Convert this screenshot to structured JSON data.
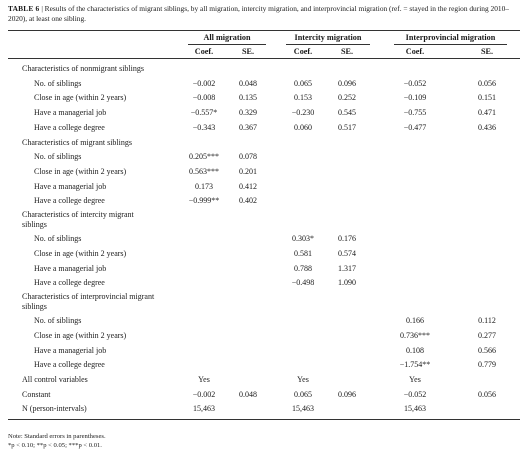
{
  "caption": {
    "label": "TABLE 6",
    "separator": "|",
    "text": "Results of the characteristics of migrant siblings, by all migration, intercity migration, and interprovincial migration (ref. = stayed in the region during 2010–2020), at least one sibling."
  },
  "header": {
    "groups": [
      "All migration",
      "Intercity migration",
      "Interprovincial migration"
    ],
    "sub": [
      "Coef.",
      "SE.",
      "Coef.",
      "SE.",
      "Coef.",
      "SE."
    ]
  },
  "rows": [
    {
      "type": "section",
      "label": "Characteristics of nonmigrant siblings"
    },
    {
      "type": "data",
      "label": "No. of siblings",
      "v": [
        "−0.002",
        "0.048",
        "0.065",
        "0.096",
        "−0.052",
        "0.056"
      ]
    },
    {
      "type": "data",
      "label": "Close in age (within 2 years)",
      "v": [
        "−0.008",
        "0.135",
        "0.153",
        "0.252",
        "−0.109",
        "0.151"
      ]
    },
    {
      "type": "data",
      "label": "Have a managerial job",
      "v": [
        "−0.557*",
        "0.329",
        "−0.230",
        "0.545",
        "−0.755",
        "0.471"
      ]
    },
    {
      "type": "data",
      "label": "Have a college degree",
      "v": [
        "−0.343",
        "0.367",
        "0.060",
        "0.517",
        "−0.477",
        "0.436"
      ]
    },
    {
      "type": "section",
      "label": "Characteristics of migrant siblings"
    },
    {
      "type": "data",
      "label": "No. of siblings",
      "v": [
        "0.205***",
        "0.078",
        "",
        "",
        "",
        ""
      ]
    },
    {
      "type": "data",
      "label": "Close in age (within 2 years)",
      "v": [
        "0.563***",
        "0.201",
        "",
        "",
        "",
        ""
      ]
    },
    {
      "type": "data",
      "label": "Have a managerial job",
      "v": [
        "0.173",
        "0.412",
        "",
        "",
        "",
        ""
      ]
    },
    {
      "type": "data",
      "label": "Have a college degree",
      "v": [
        "−0.999**",
        "0.402",
        "",
        "",
        "",
        ""
      ]
    },
    {
      "type": "section2",
      "label": "Characteristics of intercity migrant",
      "label2": "siblings"
    },
    {
      "type": "data",
      "label": "No. of siblings",
      "v": [
        "",
        "",
        "0.303*",
        "0.176",
        "",
        ""
      ]
    },
    {
      "type": "data",
      "label": "Close in age (within 2 years)",
      "v": [
        "",
        "",
        "0.581",
        "0.574",
        "",
        ""
      ]
    },
    {
      "type": "data",
      "label": "Have a managerial job",
      "v": [
        "",
        "",
        "0.788",
        "1.317",
        "",
        ""
      ]
    },
    {
      "type": "data",
      "label": "Have a college degree",
      "v": [
        "",
        "",
        "−0.498",
        "1.090",
        "",
        ""
      ]
    },
    {
      "type": "section2",
      "label": "Characteristics of interprovincial migrant",
      "label2": "siblings"
    },
    {
      "type": "data",
      "label": "No. of siblings",
      "v": [
        "",
        "",
        "",
        "",
        "0.166",
        "0.112"
      ]
    },
    {
      "type": "data",
      "label": "Close in age (within 2 years)",
      "v": [
        "",
        "",
        "",
        "",
        "0.736***",
        "0.277"
      ]
    },
    {
      "type": "data",
      "label": "Have a managerial job",
      "v": [
        "",
        "",
        "",
        "",
        "0.108",
        "0.566"
      ]
    },
    {
      "type": "data",
      "label": "Have a college degree",
      "v": [
        "",
        "",
        "",
        "",
        "−1.754**",
        "0.779"
      ]
    },
    {
      "type": "summary",
      "label": "All control variables",
      "v": [
        "Yes",
        "",
        "Yes",
        "",
        "Yes",
        ""
      ]
    },
    {
      "type": "summary",
      "label": "Constant",
      "v": [
        "−0.002",
        "0.048",
        "0.065",
        "0.096",
        "−0.052",
        "0.056"
      ]
    },
    {
      "type": "summary",
      "label": "N (person-intervals)",
      "v": [
        "15,463",
        "",
        "15,463",
        "",
        "15,463",
        ""
      ]
    }
  ],
  "notes": [
    "Note: Standard errors in parentheses.",
    "*p < 0.10; **p < 0.05; ***p < 0.01."
  ]
}
